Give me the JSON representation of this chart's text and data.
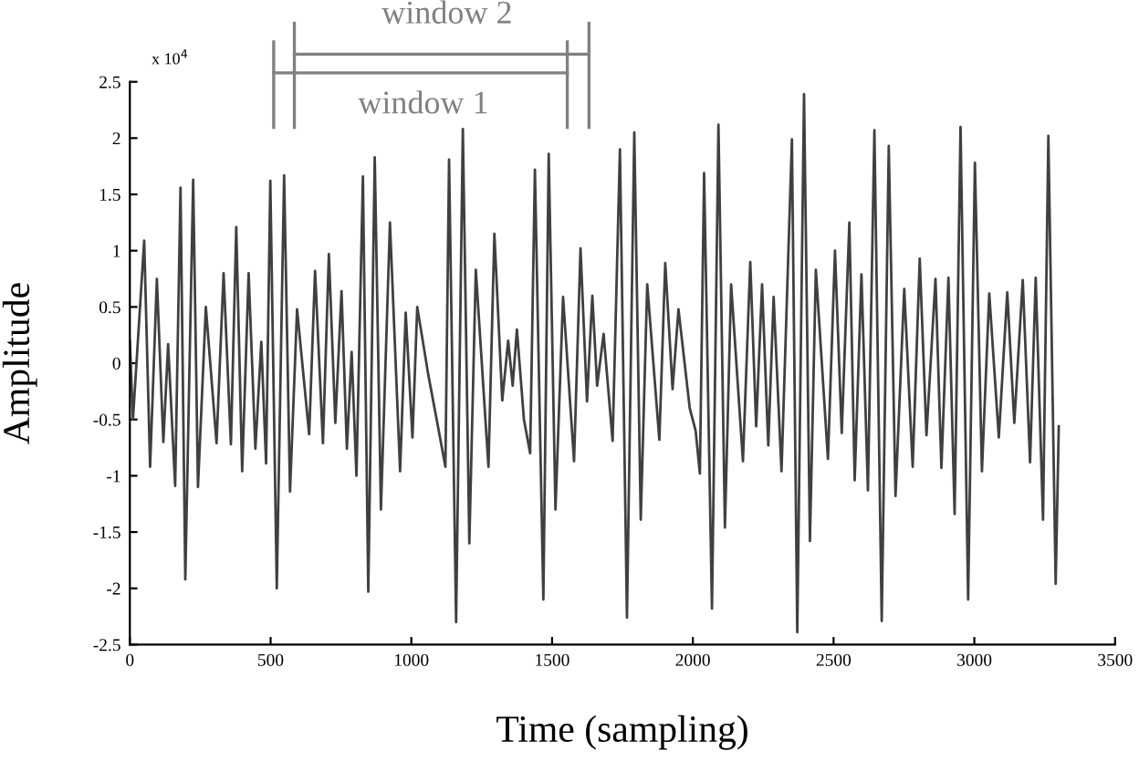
{
  "chart_data": {
    "type": "line",
    "xlabel": "Time (sampling)",
    "ylabel": "Amplitude",
    "annotations": [
      "x 10$^{4}$",
      "window 1",
      "window 2"
    ],
    "x": [
      0,
      11,
      51,
      72,
      96,
      119,
      136,
      161,
      180,
      197,
      225,
      242,
      270,
      308,
      333,
      359,
      378,
      399,
      422,
      446,
      467,
      484,
      499,
      522,
      548,
      569,
      594,
      637,
      658,
      686,
      707,
      730,
      752,
      771,
      788,
      805,
      828,
      847,
      870,
      892,
      924,
      960,
      980,
      1004,
      1021,
      1060,
      1090,
      1121,
      1134,
      1159,
      1183,
      1206,
      1229,
      1274,
      1295,
      1323,
      1344,
      1360,
      1375,
      1400,
      1422,
      1439,
      1469,
      1488,
      1512,
      1539,
      1578,
      1601,
      1624,
      1643,
      1660,
      1683,
      1715,
      1741,
      1766,
      1792,
      1815,
      1838,
      1881,
      1902,
      1928,
      1949,
      1989,
      2010,
      2025,
      2040,
      2068,
      2091,
      2114,
      2136,
      2178,
      2204,
      2225,
      2246,
      2268,
      2287,
      2315,
      2352,
      2371,
      2395,
      2416,
      2437,
      2480,
      2505,
      2529,
      2556,
      2575,
      2599,
      2622,
      2645,
      2671,
      2696,
      2720,
      2751,
      2781,
      2806,
      2830,
      2862,
      2883,
      2908,
      2930,
      2951,
      2978,
      3002,
      3027,
      3053,
      3087,
      3117,
      3142,
      3172,
      3198,
      3218,
      3244,
      3263,
      3289,
      3300
    ],
    "series": [
      {
        "color": "#404040",
        "values": [
          0.2,
          -0.5,
          1.09,
          -0.92,
          0.75,
          -0.7,
          0.17,
          -1.09,
          1.56,
          -1.92,
          1.63,
          -1.1,
          0.5,
          -0.71,
          0.8,
          -0.72,
          1.21,
          -0.96,
          0.8,
          -0.76,
          0.19,
          -0.89,
          1.62,
          -2.0,
          1.67,
          -1.14,
          0.48,
          -0.63,
          0.82,
          -0.71,
          0.97,
          -0.53,
          0.64,
          -0.76,
          0.1,
          -1.0,
          1.66,
          -2.03,
          1.83,
          -1.3,
          1.25,
          -0.96,
          0.45,
          -0.66,
          0.5,
          -0.1,
          -0.5,
          -0.92,
          1.81,
          -2.3,
          2.08,
          -1.6,
          0.83,
          -0.92,
          1.15,
          -0.33,
          0.2,
          -0.2,
          0.3,
          -0.5,
          -0.8,
          1.72,
          -2.1,
          1.86,
          -1.3,
          0.59,
          -0.87,
          1.02,
          -0.34,
          0.6,
          -0.2,
          0.26,
          -0.69,
          1.9,
          -2.26,
          2.05,
          -1.39,
          0.7,
          -0.68,
          0.89,
          -0.23,
          0.48,
          -0.4,
          -0.6,
          -0.98,
          1.69,
          -2.18,
          2.12,
          -1.46,
          0.7,
          -0.87,
          0.9,
          -0.56,
          0.7,
          -0.73,
          0.59,
          -0.96,
          1.99,
          -2.39,
          2.39,
          -1.58,
          0.83,
          -0.85,
          1.0,
          -0.62,
          1.25,
          -1.04,
          0.79,
          -1.13,
          2.07,
          -2.29,
          1.93,
          -1.18,
          0.66,
          -0.92,
          0.93,
          -0.64,
          0.75,
          -0.93,
          0.76,
          -1.34,
          2.1,
          -2.1,
          1.78,
          -0.96,
          0.62,
          -0.66,
          0.63,
          -0.53,
          0.74,
          -0.88,
          0.76,
          -1.39,
          2.02,
          -1.96,
          -0.56
        ]
      }
    ],
    "xlim": [
      0,
      3500
    ],
    "xticks": [
      0,
      500,
      1000,
      1500,
      2000,
      2500,
      3000,
      3500
    ],
    "ylim": [
      -2.5,
      2.5
    ],
    "yticks": [
      -2.5,
      -2,
      -1.5,
      -1,
      -0.5,
      0,
      0.5,
      1,
      1.5,
      2,
      2.5
    ],
    "grid": false,
    "marker": "none",
    "line_style": "solid"
  }
}
